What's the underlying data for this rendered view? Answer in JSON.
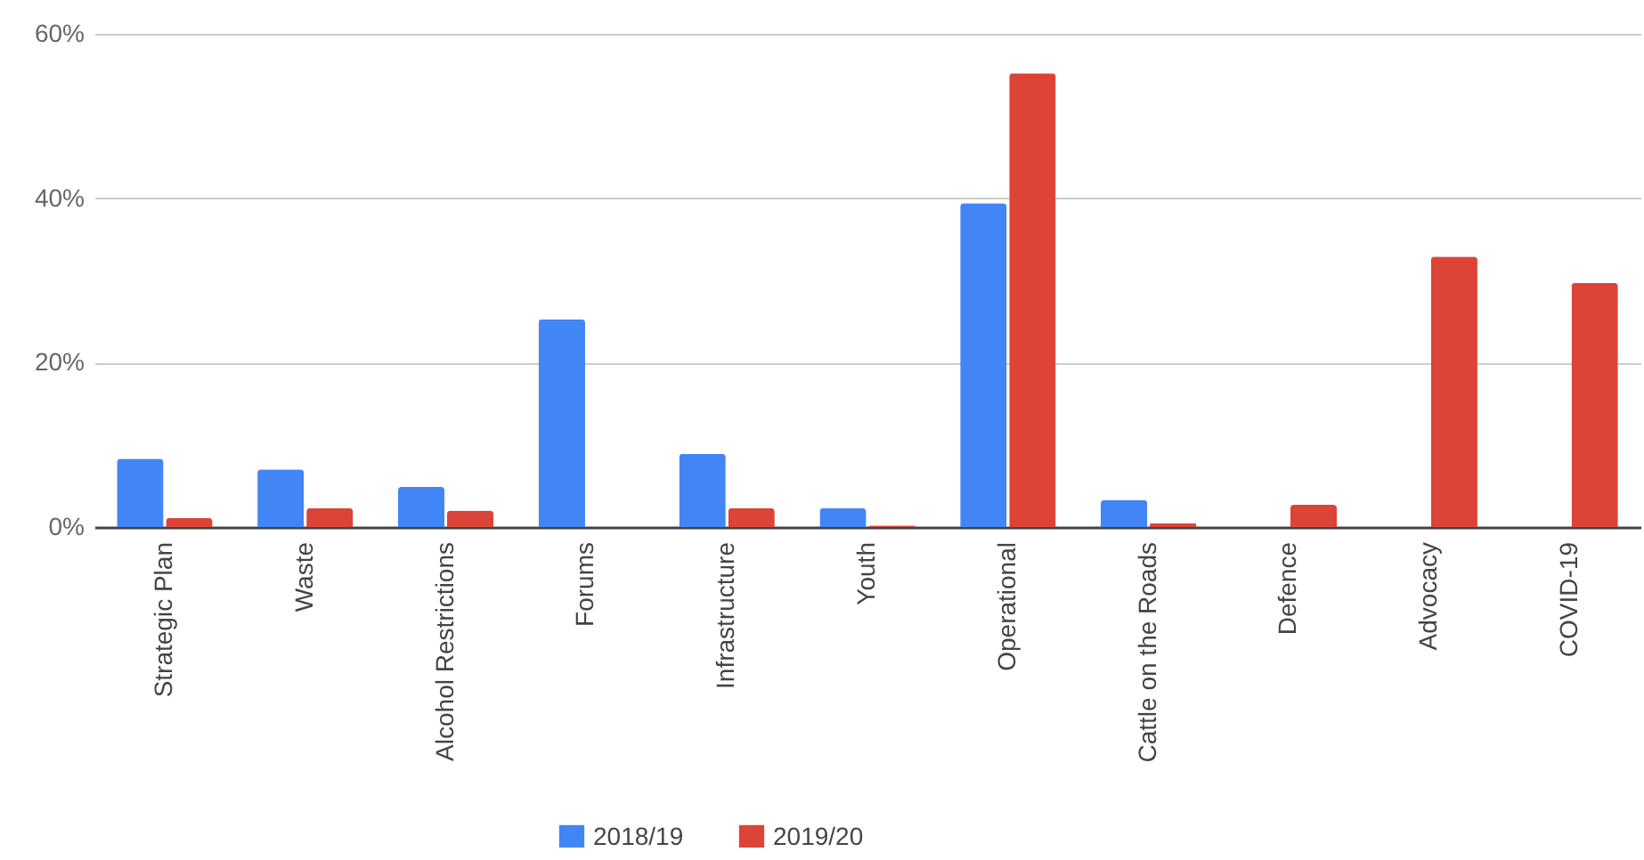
{
  "chart_data": {
    "type": "bar",
    "categories": [
      "Strategic Plan",
      "Waste",
      "Alcohol Restrictions",
      "Forums",
      "Infrastructure",
      "Youth",
      "Operational",
      "Cattle on the Roads",
      "Defence",
      "Advocacy",
      "COVID-19"
    ],
    "series": [
      {
        "name": "2018/19",
        "color": "#4285f4",
        "values": [
          8.3,
          7.0,
          4.9,
          25.3,
          8.9,
          2.3,
          39.4,
          3.3,
          0,
          0,
          0
        ]
      },
      {
        "name": "2019/20",
        "color": "#db4437",
        "values": [
          1.1,
          2.3,
          2.0,
          0,
          2.3,
          0.2,
          55.2,
          0.5,
          2.7,
          32.9,
          29.7
        ]
      }
    ],
    "ylim": [
      0,
      60
    ],
    "yticks": [
      {
        "value": 0,
        "label": "0%"
      },
      {
        "value": 20,
        "label": "20%"
      },
      {
        "value": 40,
        "label": "40%"
      },
      {
        "value": 60,
        "label": "60%"
      }
    ],
    "grid": "y",
    "legend": "bottom"
  }
}
